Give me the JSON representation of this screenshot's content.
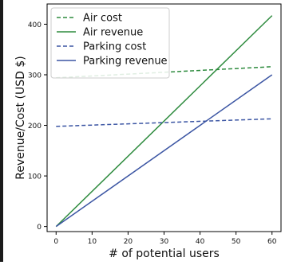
{
  "chart_data": {
    "type": "line",
    "xlabel": "# of potential users",
    "ylabel": "Revenue/Cost (USD $)",
    "xlim": [
      -2.5,
      62.5
    ],
    "ylim": [
      -10,
      440
    ],
    "xticks": [
      0,
      10,
      20,
      30,
      40,
      50,
      60
    ],
    "yticks": [
      0,
      100,
      200,
      300,
      400
    ],
    "grid": false,
    "legend_position": "top-left",
    "series": [
      {
        "name": "Air cost",
        "x": [
          0,
          60
        ],
        "y": [
          294,
          316
        ],
        "color": "#2e8b3e",
        "dash": "dashed"
      },
      {
        "name": "Air revenue",
        "x": [
          0,
          60
        ],
        "y": [
          0,
          417
        ],
        "color": "#2e8b3e",
        "dash": "solid"
      },
      {
        "name": "Parking cost",
        "x": [
          0,
          60
        ],
        "y": [
          198,
          213
        ],
        "color": "#3b55a3",
        "dash": "dashed"
      },
      {
        "name": "Parking revenue",
        "x": [
          0,
          60
        ],
        "y": [
          0,
          300
        ],
        "color": "#3b55a3",
        "dash": "solid"
      }
    ]
  }
}
